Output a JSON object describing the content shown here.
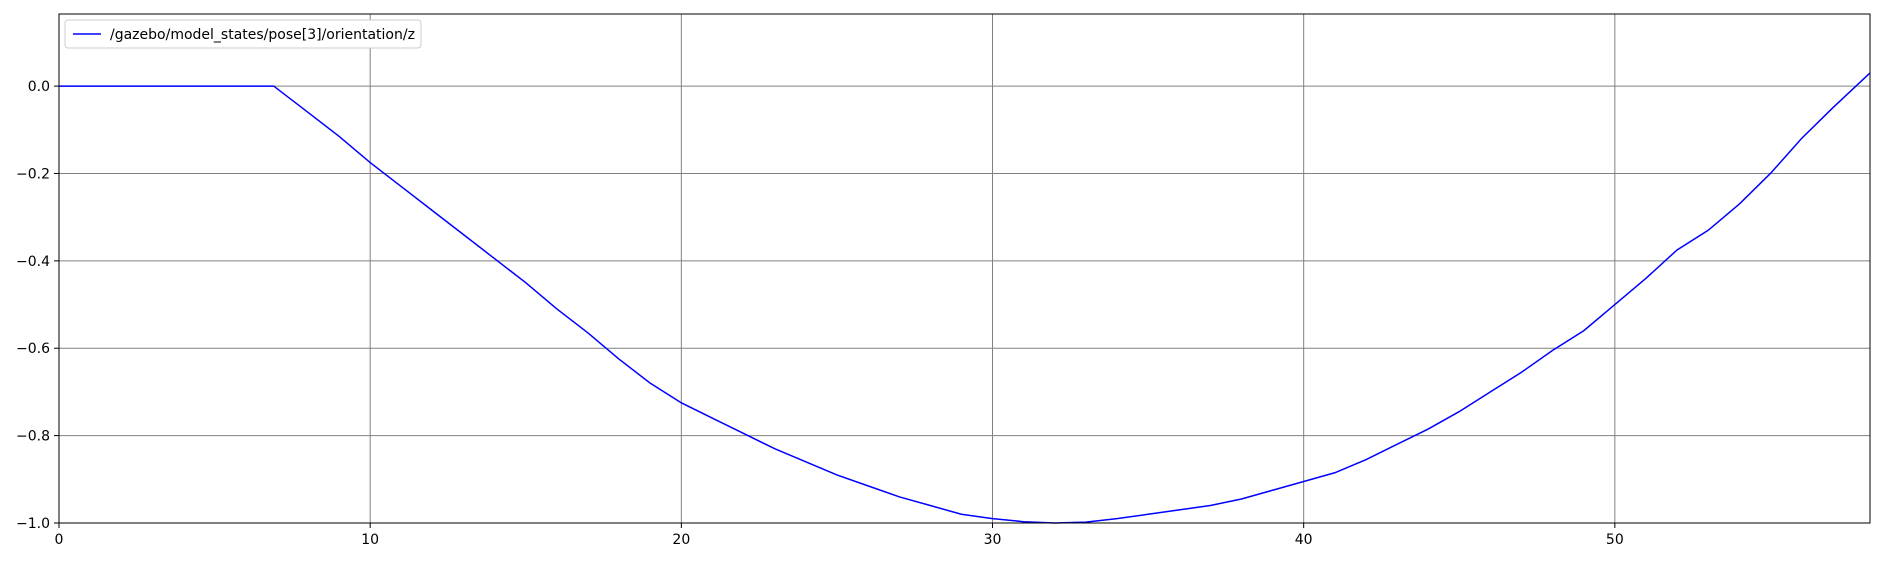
{
  "chart_data": {
    "type": "line",
    "x": [
      0,
      6.9,
      8,
      9,
      10,
      11,
      12,
      13,
      14,
      15,
      16,
      17,
      18,
      19,
      20,
      21,
      22,
      23,
      24,
      25,
      26,
      27,
      28,
      29,
      30,
      31,
      32,
      33,
      34,
      35,
      36,
      37,
      38,
      39,
      40,
      41,
      42,
      43,
      44,
      45,
      46,
      47,
      48,
      49,
      50,
      51,
      52,
      53,
      54,
      55,
      56,
      57,
      58.2
    ],
    "series": [
      {
        "name": "/gazebo/model_states/pose[3]/orientation/z",
        "color": "#0000ff",
        "values": [
          0,
          0,
          -0.06,
          -0.115,
          -0.175,
          -0.23,
          -0.285,
          -0.34,
          -0.395,
          -0.45,
          -0.51,
          -0.565,
          -0.625,
          -0.68,
          -0.725,
          -0.76,
          -0.795,
          -0.83,
          -0.86,
          -0.89,
          -0.915,
          -0.94,
          -0.96,
          -0.98,
          -0.99,
          -0.997,
          -1.0,
          -0.998,
          -0.99,
          -0.98,
          -0.97,
          -0.96,
          -0.945,
          -0.925,
          -0.905,
          -0.885,
          -0.855,
          -0.82,
          -0.785,
          -0.745,
          -0.7,
          -0.655,
          -0.605,
          -0.56,
          -0.5,
          -0.44,
          -0.375,
          -0.33,
          -0.27,
          -0.2,
          -0.12,
          -0.05,
          0.03
        ]
      }
    ],
    "xlim": [
      0,
      58.2
    ],
    "ylim": [
      -1.0,
      0.165
    ],
    "xticks": [
      0,
      10,
      20,
      30,
      40,
      50
    ],
    "yticks": [
      {
        "value": -1.0,
        "label": "−1.0"
      },
      {
        "value": -0.8,
        "label": "−0.8"
      },
      {
        "value": -0.6,
        "label": "−0.6"
      },
      {
        "value": -0.4,
        "label": "−0.4"
      },
      {
        "value": -0.2,
        "label": "−0.2"
      },
      {
        "value": 0.0,
        "label": "0.0"
      }
    ],
    "grid": true,
    "legend": "upper left"
  }
}
